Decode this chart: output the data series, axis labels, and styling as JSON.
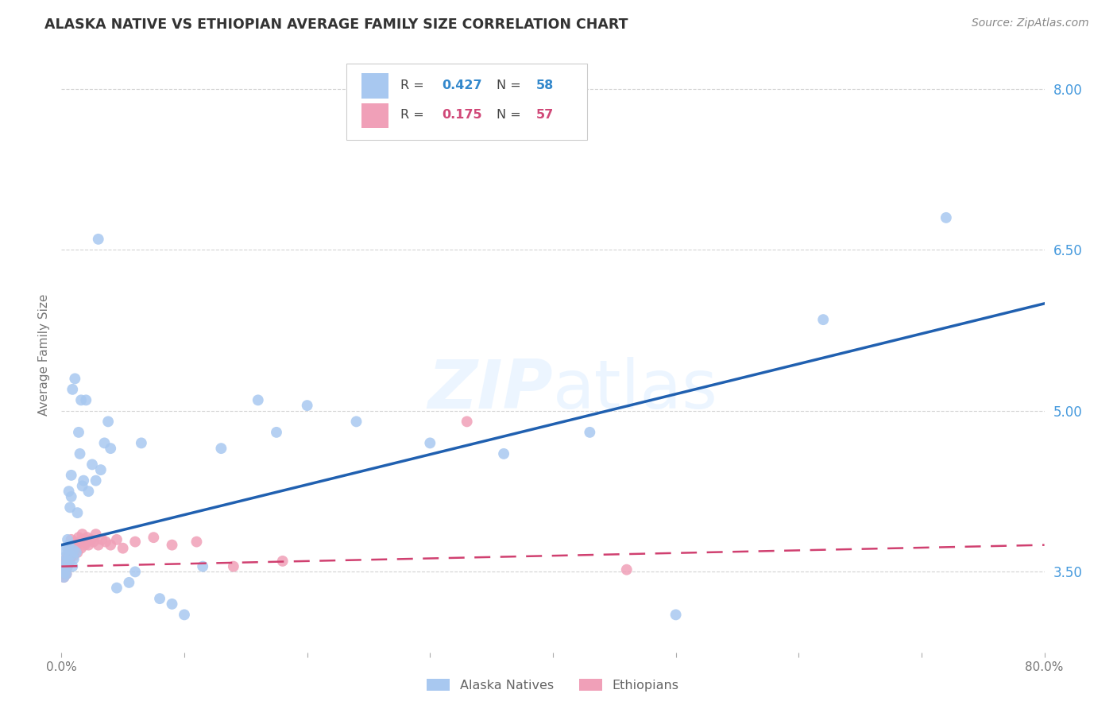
{
  "title": "ALASKA NATIVE VS ETHIOPIAN AVERAGE FAMILY SIZE CORRELATION CHART",
  "source": "Source: ZipAtlas.com",
  "ylabel": "Average Family Size",
  "yticks_right": [
    3.5,
    5.0,
    6.5,
    8.0
  ],
  "ytick_labels_right": [
    "3.50",
    "5.00",
    "6.50",
    "8.00"
  ],
  "background_color": "#ffffff",
  "grid_color": "#c8c8c8",
  "alaska_color": "#a8c8f0",
  "ethiopian_color": "#f0a0b8",
  "alaska_line_color": "#2060b0",
  "ethiopian_line_color": "#d04070",
  "legend_R_alaska": "0.427",
  "legend_N_alaska": "58",
  "legend_R_ethiopian": "0.175",
  "legend_N_ethiopian": "57",
  "alaska_natives_x": [
    0.001,
    0.002,
    0.002,
    0.003,
    0.003,
    0.003,
    0.004,
    0.004,
    0.004,
    0.005,
    0.005,
    0.005,
    0.006,
    0.006,
    0.007,
    0.007,
    0.008,
    0.008,
    0.009,
    0.009,
    0.01,
    0.01,
    0.011,
    0.012,
    0.013,
    0.014,
    0.015,
    0.016,
    0.017,
    0.018,
    0.02,
    0.022,
    0.025,
    0.028,
    0.03,
    0.032,
    0.035,
    0.038,
    0.04,
    0.045,
    0.055,
    0.06,
    0.065,
    0.08,
    0.09,
    0.1,
    0.115,
    0.13,
    0.16,
    0.175,
    0.2,
    0.24,
    0.3,
    0.36,
    0.43,
    0.5,
    0.62,
    0.72
  ],
  "alaska_natives_y": [
    3.5,
    3.55,
    3.45,
    3.6,
    3.7,
    3.5,
    3.65,
    3.55,
    3.48,
    3.72,
    3.8,
    3.6,
    3.75,
    4.25,
    3.65,
    4.1,
    4.4,
    4.2,
    5.2,
    3.55,
    3.7,
    3.62,
    5.3,
    3.68,
    4.05,
    4.8,
    4.6,
    5.1,
    4.3,
    4.35,
    5.1,
    4.25,
    4.5,
    4.35,
    6.6,
    4.45,
    4.7,
    4.9,
    4.65,
    3.35,
    3.4,
    3.5,
    4.7,
    3.25,
    3.2,
    3.1,
    3.55,
    4.65,
    5.1,
    4.8,
    5.05,
    4.9,
    4.7,
    4.6,
    4.8,
    3.1,
    5.85,
    6.8
  ],
  "ethiopians_x": [
    0.001,
    0.001,
    0.002,
    0.002,
    0.002,
    0.003,
    0.003,
    0.003,
    0.004,
    0.004,
    0.004,
    0.005,
    0.005,
    0.005,
    0.006,
    0.006,
    0.006,
    0.007,
    0.007,
    0.007,
    0.008,
    0.008,
    0.008,
    0.009,
    0.009,
    0.01,
    0.01,
    0.011,
    0.011,
    0.012,
    0.013,
    0.014,
    0.015,
    0.016,
    0.017,
    0.018,
    0.019,
    0.02,
    0.021,
    0.022,
    0.024,
    0.026,
    0.028,
    0.03,
    0.033,
    0.036,
    0.04,
    0.045,
    0.05,
    0.06,
    0.075,
    0.09,
    0.11,
    0.14,
    0.18,
    0.33,
    0.46
  ],
  "ethiopians_y": [
    3.5,
    3.48,
    3.52,
    3.55,
    3.45,
    3.6,
    3.58,
    3.5,
    3.62,
    3.55,
    3.48,
    3.65,
    3.6,
    3.55,
    3.7,
    3.65,
    3.58,
    3.75,
    3.68,
    3.62,
    3.8,
    3.72,
    3.65,
    3.75,
    3.68,
    3.72,
    3.65,
    3.78,
    3.7,
    3.75,
    3.68,
    3.82,
    3.78,
    3.72,
    3.85,
    3.8,
    3.75,
    3.78,
    3.82,
    3.75,
    3.8,
    3.78,
    3.85,
    3.75,
    3.8,
    3.78,
    3.75,
    3.8,
    3.72,
    3.78,
    3.82,
    3.75,
    3.78,
    3.55,
    3.6,
    4.9,
    3.52
  ],
  "xlim": [
    0.0,
    0.8
  ],
  "ylim": [
    2.75,
    8.3
  ],
  "xtick_positions": [
    0.0,
    0.1,
    0.2,
    0.3,
    0.4,
    0.5,
    0.6,
    0.7,
    0.8
  ],
  "xtick_labels": [
    "0.0%",
    "",
    "",
    "",
    "",
    "",
    "",
    "",
    "80.0%"
  ]
}
